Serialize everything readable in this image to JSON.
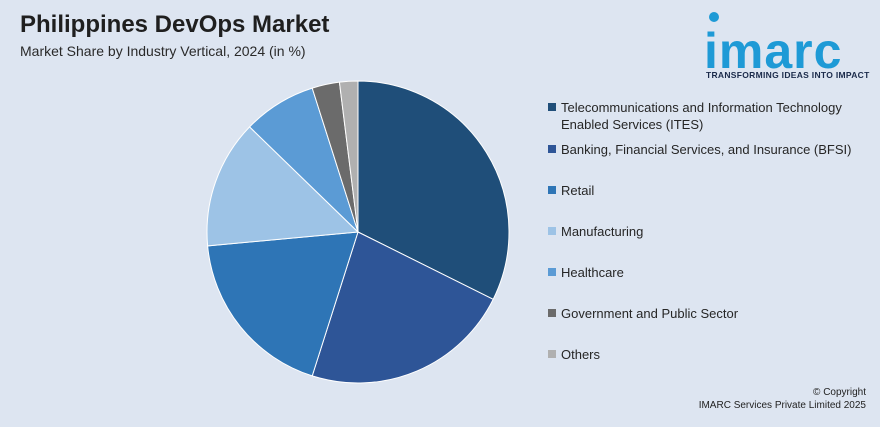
{
  "header": {
    "title": "Philippines DevOps Market",
    "subtitle": "Market Share by Industry Vertical, 2024 (in %)"
  },
  "logo": {
    "wordmark": "imarc",
    "tagline": "TRANSFORMING IDEAS INTO IMPACT",
    "color": "#1e9ad6"
  },
  "footer": {
    "copyright_line1": "© Copyright",
    "copyright_line2": "IMARC Services Private Limited 2025"
  },
  "chart_data": {
    "type": "pie",
    "title": "Philippines DevOps Market",
    "subtitle": "Market Share by Industry Vertical, 2024 (in %)",
    "legend_position": "right",
    "start_angle_deg": 0,
    "direction": "clockwise",
    "slices": [
      {
        "name": "Telecommunications and Information Technology Enabled Services (ITES)",
        "value": 33,
        "color": "#1f4e79"
      },
      {
        "name": "Banking, Financial Services, and Insurance (BFSI)",
        "value": 23,
        "color": "#2e5597"
      },
      {
        "name": "Retail",
        "value": 19,
        "color": "#2e75b6"
      },
      {
        "name": "Manufacturing",
        "value": 14,
        "color": "#9dc3e6"
      },
      {
        "name": "Healthcare",
        "value": 8,
        "color": "#5b9bd5"
      },
      {
        "name": "Government and Public Sector",
        "value": 3,
        "color": "#6b6b6b"
      },
      {
        "name": "Others",
        "value": 2,
        "color": "#b0b0b0"
      }
    ]
  }
}
